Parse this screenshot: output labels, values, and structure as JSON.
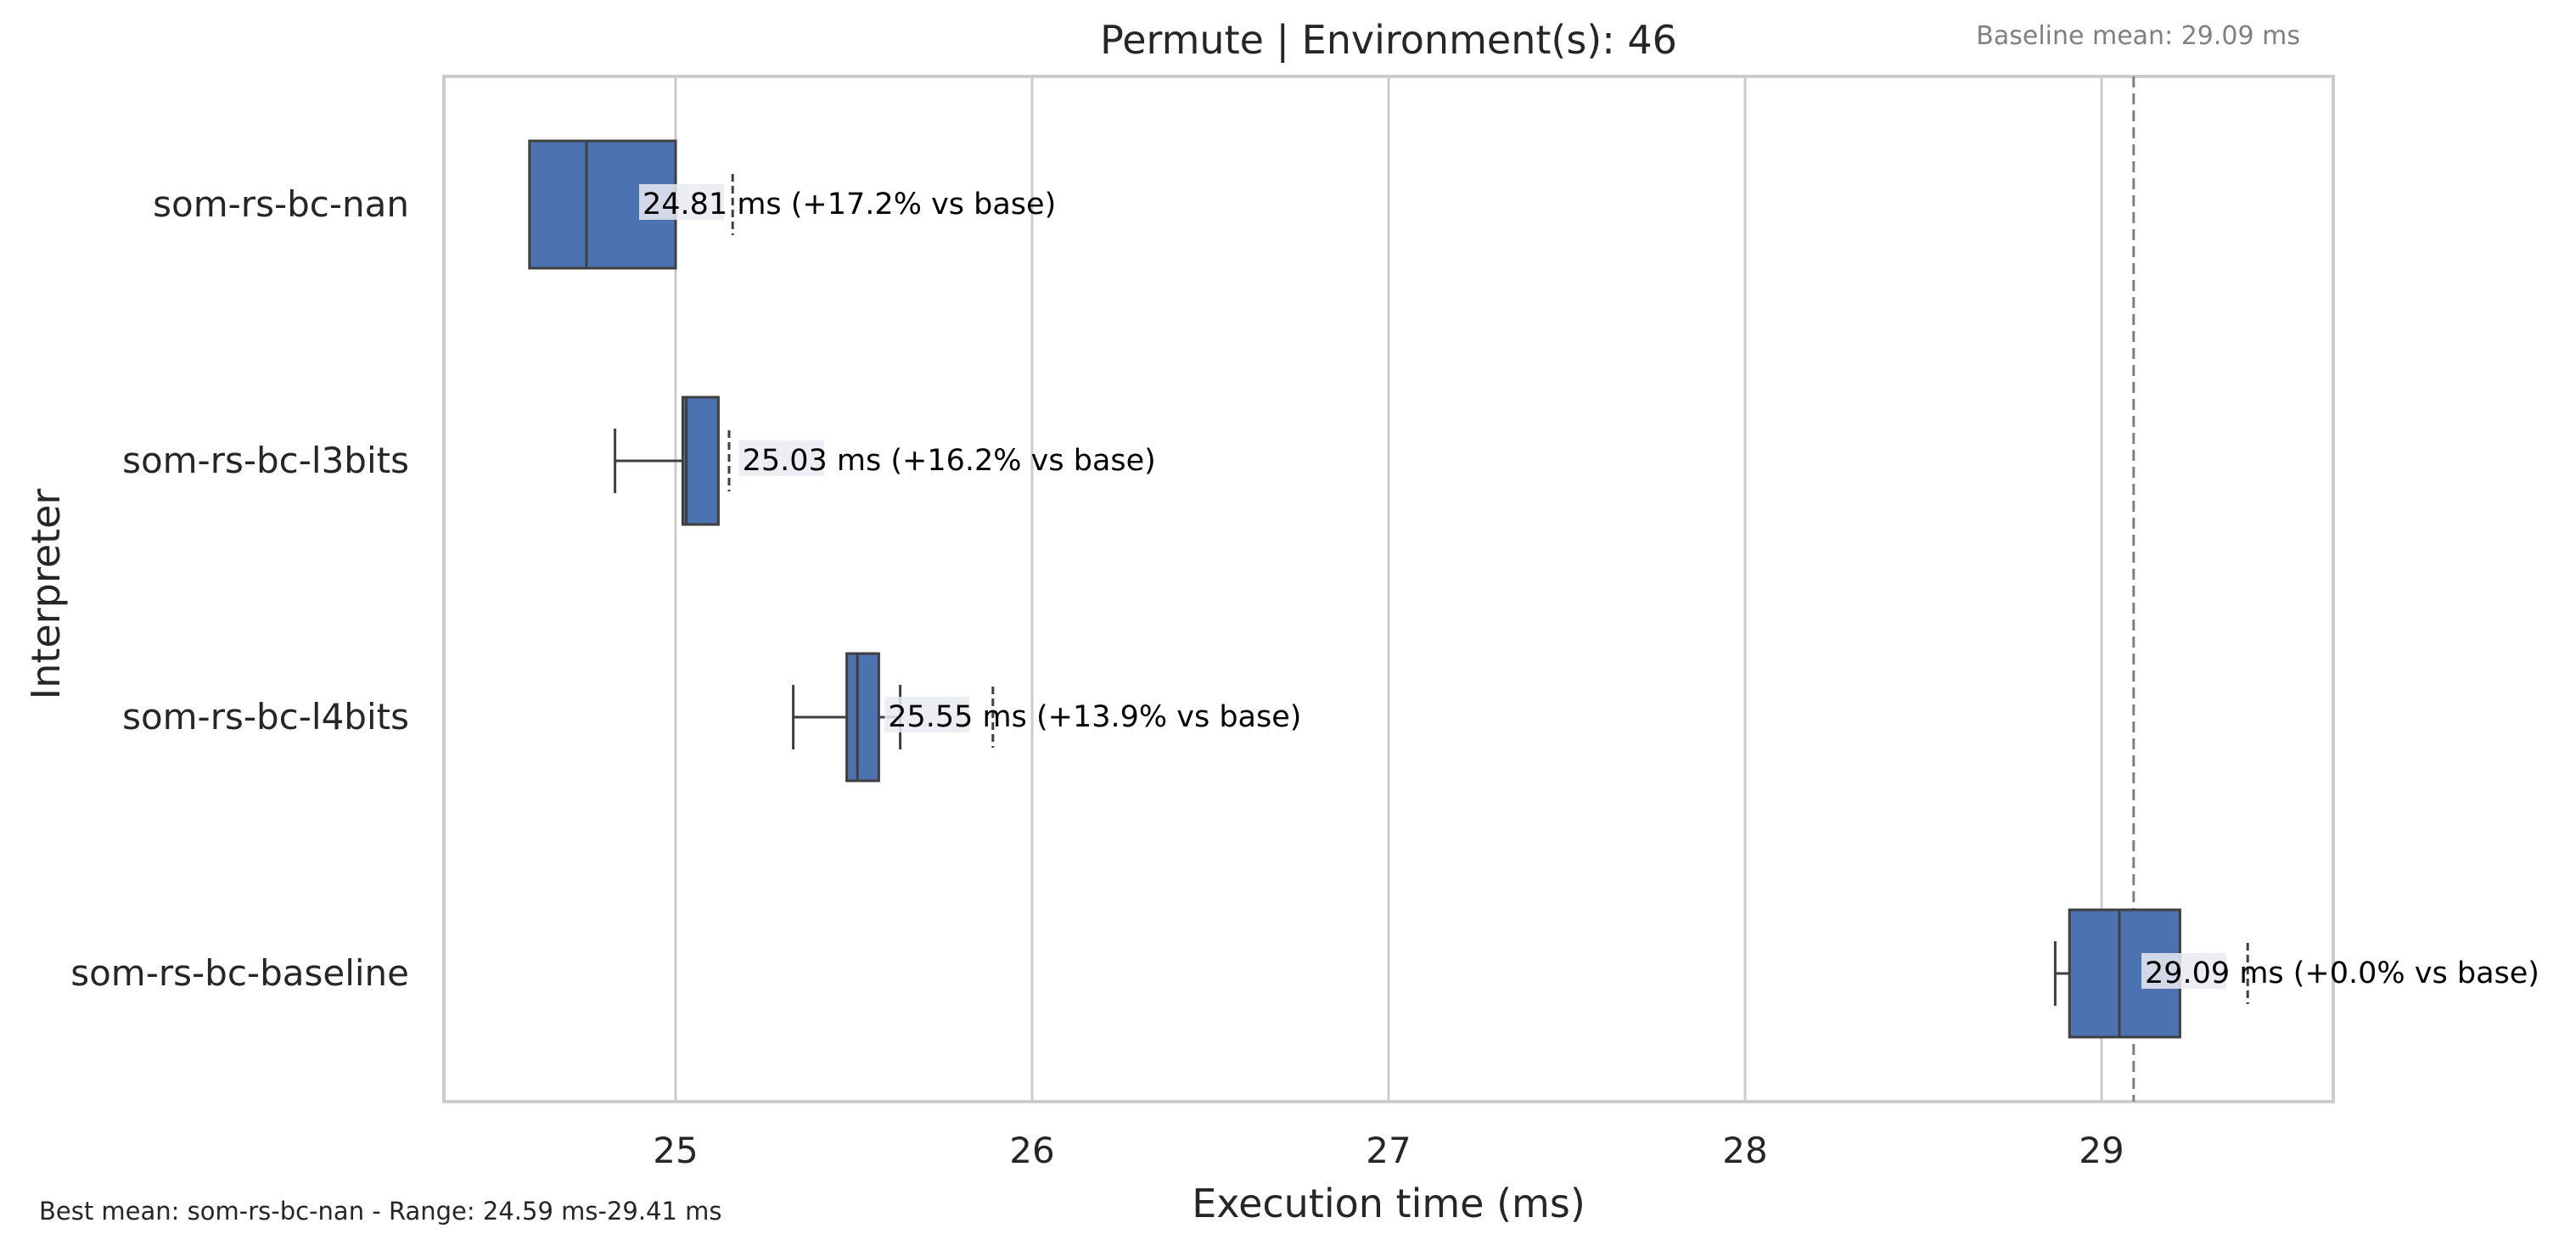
{
  "chart_data": {
    "type": "boxplot",
    "title": "Permute | Environment(s): 46",
    "xlabel": "Execution time (ms)",
    "ylabel": "Interpreter",
    "xlim": [
      24.35,
      29.65
    ],
    "xticks": [
      "25",
      "26",
      "27",
      "28",
      "29"
    ],
    "xtick_values": [
      25,
      26,
      27,
      28,
      29
    ],
    "grid": "vertical",
    "baseline": {
      "label": "Baseline mean: 29.09 ms",
      "value": 29.09
    },
    "footer": "Best mean: som-rs-bc-nan - Range: 24.59 ms-29.41 ms",
    "box_color": "#4c72b0",
    "series": [
      {
        "name": "som-rs-bc-nan",
        "whisker_low": 24.59,
        "q1": 24.59,
        "median": 24.75,
        "q3": 25.0,
        "whisker_high": 25.0,
        "outliers": [
          25.16
        ],
        "label": "24.81 ms  (+17.2% vs base)"
      },
      {
        "name": "som-rs-bc-l3bits",
        "whisker_low": 24.83,
        "q1": 25.02,
        "median": 25.03,
        "q3": 25.12,
        "whisker_high": 25.12,
        "outliers": [
          25.15
        ],
        "label": "25.03 ms  (+16.2% vs base)"
      },
      {
        "name": "som-rs-bc-l4bits",
        "whisker_low": 25.33,
        "q1": 25.48,
        "median": 25.51,
        "q3": 25.57,
        "whisker_high": 25.63,
        "outliers": [
          25.89
        ],
        "label": "25.55 ms  (+13.9% vs base)"
      },
      {
        "name": "som-rs-bc-baseline",
        "whisker_low": 28.87,
        "q1": 28.91,
        "median": 29.05,
        "q3": 29.22,
        "whisker_high": 29.22,
        "outliers": [
          29.41
        ],
        "label": "29.09 ms  (+0.0% vs base)"
      }
    ]
  }
}
